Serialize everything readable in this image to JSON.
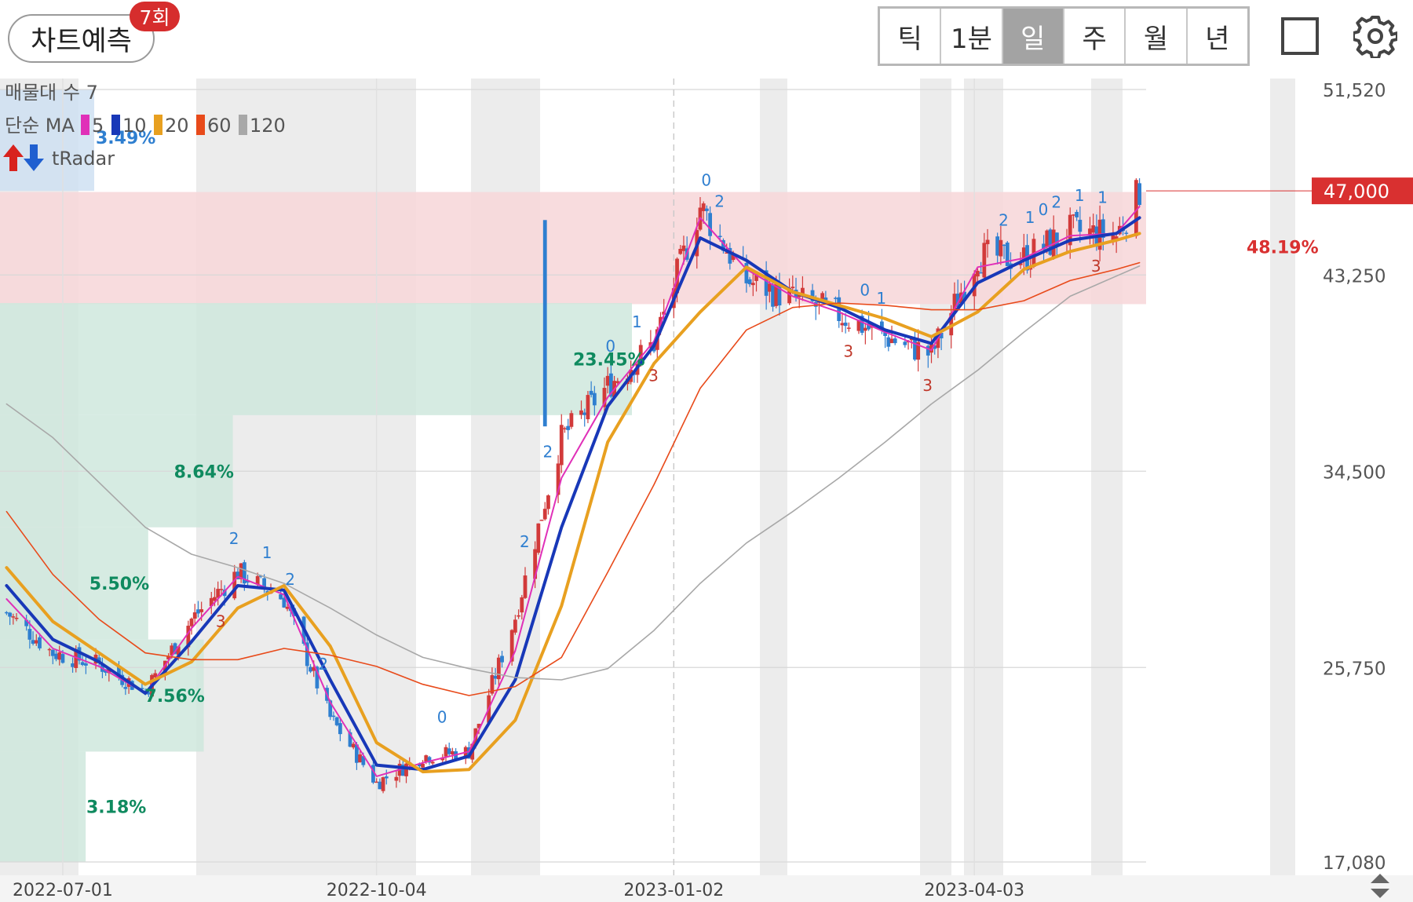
{
  "header": {
    "predict_label": "차트예측",
    "predict_count": "7회",
    "periods": [
      {
        "label": "틱",
        "active": false
      },
      {
        "label": "1분",
        "active": false
      },
      {
        "label": "일",
        "active": true
      },
      {
        "label": "주",
        "active": false
      },
      {
        "label": "월",
        "active": false
      },
      {
        "label": "년",
        "active": false
      }
    ],
    "icons": [
      "square-icon",
      "gear-icon"
    ]
  },
  "legend": {
    "volume_profile": "매물대 수 7",
    "ma_title": "단순 MA",
    "ma_periods": [
      "5",
      "10",
      "20",
      "60",
      "120"
    ],
    "radar_label": "tRadar"
  },
  "colors": {
    "ma5": "#e030b8",
    "ma10": "#1838b8",
    "ma20": "#e8a020",
    "ma60": "#e84a1a",
    "ma120": "#a8a8a8",
    "up": "#d23a3a",
    "down": "#2f7fd0",
    "price_tag": "#d93030",
    "zone_red": "#f7d8da",
    "zone_green": "#d7ece4",
    "shade": "#ececec",
    "profile_text": "#0f8a5f"
  },
  "chart_data": {
    "type": "candlestick",
    "y_ticks": [
      "51,520",
      "43,250",
      "34,500",
      "25,750",
      "17,080"
    ],
    "y_tick_values": [
      51520,
      43250,
      34500,
      25750,
      17080
    ],
    "x_ticks": [
      "2022-07-01",
      "2022-10-04",
      "2023-01-02",
      "2023-04-03"
    ],
    "x_tick_dates": [
      "2022-07-01",
      "2022-10-04",
      "2023-01-02",
      "2023-04-03"
    ],
    "x_range": [
      "2022-06-12",
      "2023-05-25"
    ],
    "last_price": "47,000",
    "last_price_value": 47000,
    "resistance_zone": [
      41950,
      46950
    ],
    "support_zone": [
      36950,
      41950
    ],
    "volume_profile": [
      {
        "label": "3.49%",
        "range": [
          47000,
          51520
        ],
        "share": 3.49,
        "color": "blue"
      },
      {
        "label": "23.45%",
        "range": [
          37000,
          42000
        ],
        "share": 23.45,
        "color": "green"
      },
      {
        "label": "8.64%",
        "range": [
          32000,
          37000
        ],
        "share": 8.64,
        "color": "green"
      },
      {
        "label": "5.50%",
        "range": [
          27000,
          32000
        ],
        "share": 5.5,
        "color": "green"
      },
      {
        "label": "7.56%",
        "range": [
          22000,
          27000
        ],
        "share": 7.56,
        "color": "green"
      },
      {
        "label": "3.18%",
        "range": [
          17080,
          22000
        ],
        "share": 3.18,
        "color": "green"
      },
      {
        "label": "48.19%",
        "range": [
          42000,
          47000
        ],
        "share": 48.19,
        "color": "red"
      }
    ],
    "series_dates": [
      "2022-06-14",
      "2022-06-28",
      "2022-07-12",
      "2022-07-26",
      "2022-08-09",
      "2022-08-23",
      "2022-09-06",
      "2022-09-20",
      "2022-10-04",
      "2022-10-18",
      "2022-11-01",
      "2022-11-15",
      "2022-11-29",
      "2022-12-13",
      "2022-12-27",
      "2023-01-10",
      "2023-01-24",
      "2023-02-07",
      "2023-02-21",
      "2023-03-07",
      "2023-03-21",
      "2023-04-04",
      "2023-04-18",
      "2023-05-02",
      "2023-05-16",
      "2023-05-23"
    ],
    "series_close": [
      28200,
      26400,
      25900,
      24700,
      27900,
      30000,
      28800,
      23500,
      20600,
      21800,
      22000,
      28000,
      36000,
      38300,
      40200,
      46300,
      43000,
      42200,
      41500,
      40500,
      39700,
      44100,
      44000,
      45200,
      45000,
      47000
    ],
    "ma": [
      {
        "period": "5",
        "values": [
          28800,
          26600,
          25800,
          24600,
          27500,
          29800,
          29000,
          24200,
          20900,
          21500,
          22000,
          26500,
          34200,
          37800,
          40300,
          45800,
          43500,
          42300,
          41600,
          40700,
          39900,
          43600,
          44000,
          45000,
          45100,
          46300
        ]
      },
      {
        "period": "10",
        "values": [
          29400,
          27000,
          26000,
          24600,
          26900,
          29400,
          29200,
          25200,
          21400,
          21200,
          21800,
          25200,
          32000,
          37400,
          40100,
          44900,
          43900,
          42500,
          41800,
          40800,
          40200,
          42900,
          43900,
          44800,
          45100,
          45800
        ]
      },
      {
        "period": "20",
        "values": [
          30200,
          27800,
          26400,
          25000,
          26000,
          28400,
          29400,
          26700,
          22400,
          21100,
          21200,
          23400,
          28500,
          35800,
          39300,
          41600,
          43600,
          42500,
          41900,
          41300,
          40500,
          41600,
          43500,
          44300,
          44800,
          45100
        ]
      },
      {
        "period": "60",
        "values": [
          32700,
          29900,
          27900,
          26400,
          26100,
          26100,
          26600,
          26300,
          25800,
          25000,
          24500,
          24900,
          26200,
          30000,
          33900,
          38200,
          40800,
          41800,
          42000,
          41900,
          41700,
          41700,
          42100,
          43000,
          43500,
          43800
        ]
      },
      {
        "period": "120",
        "values": [
          37500,
          36000,
          34000,
          32000,
          30800,
          30200,
          29500,
          28400,
          27200,
          26200,
          25700,
          25300,
          25200,
          25700,
          27400,
          29500,
          31300,
          32700,
          34200,
          35800,
          37500,
          39000,
          40700,
          42300,
          43200,
          43650
        ]
      }
    ],
    "radar_markers": [
      "2",
      "2",
      "2",
      "1",
      "0",
      "2",
      "0",
      "1",
      "0",
      "1",
      "3",
      "3",
      "3",
      "1",
      "2",
      "3",
      "0",
      "1",
      "1",
      "0",
      "2",
      "2",
      "2",
      "3"
    ],
    "grid": true
  }
}
